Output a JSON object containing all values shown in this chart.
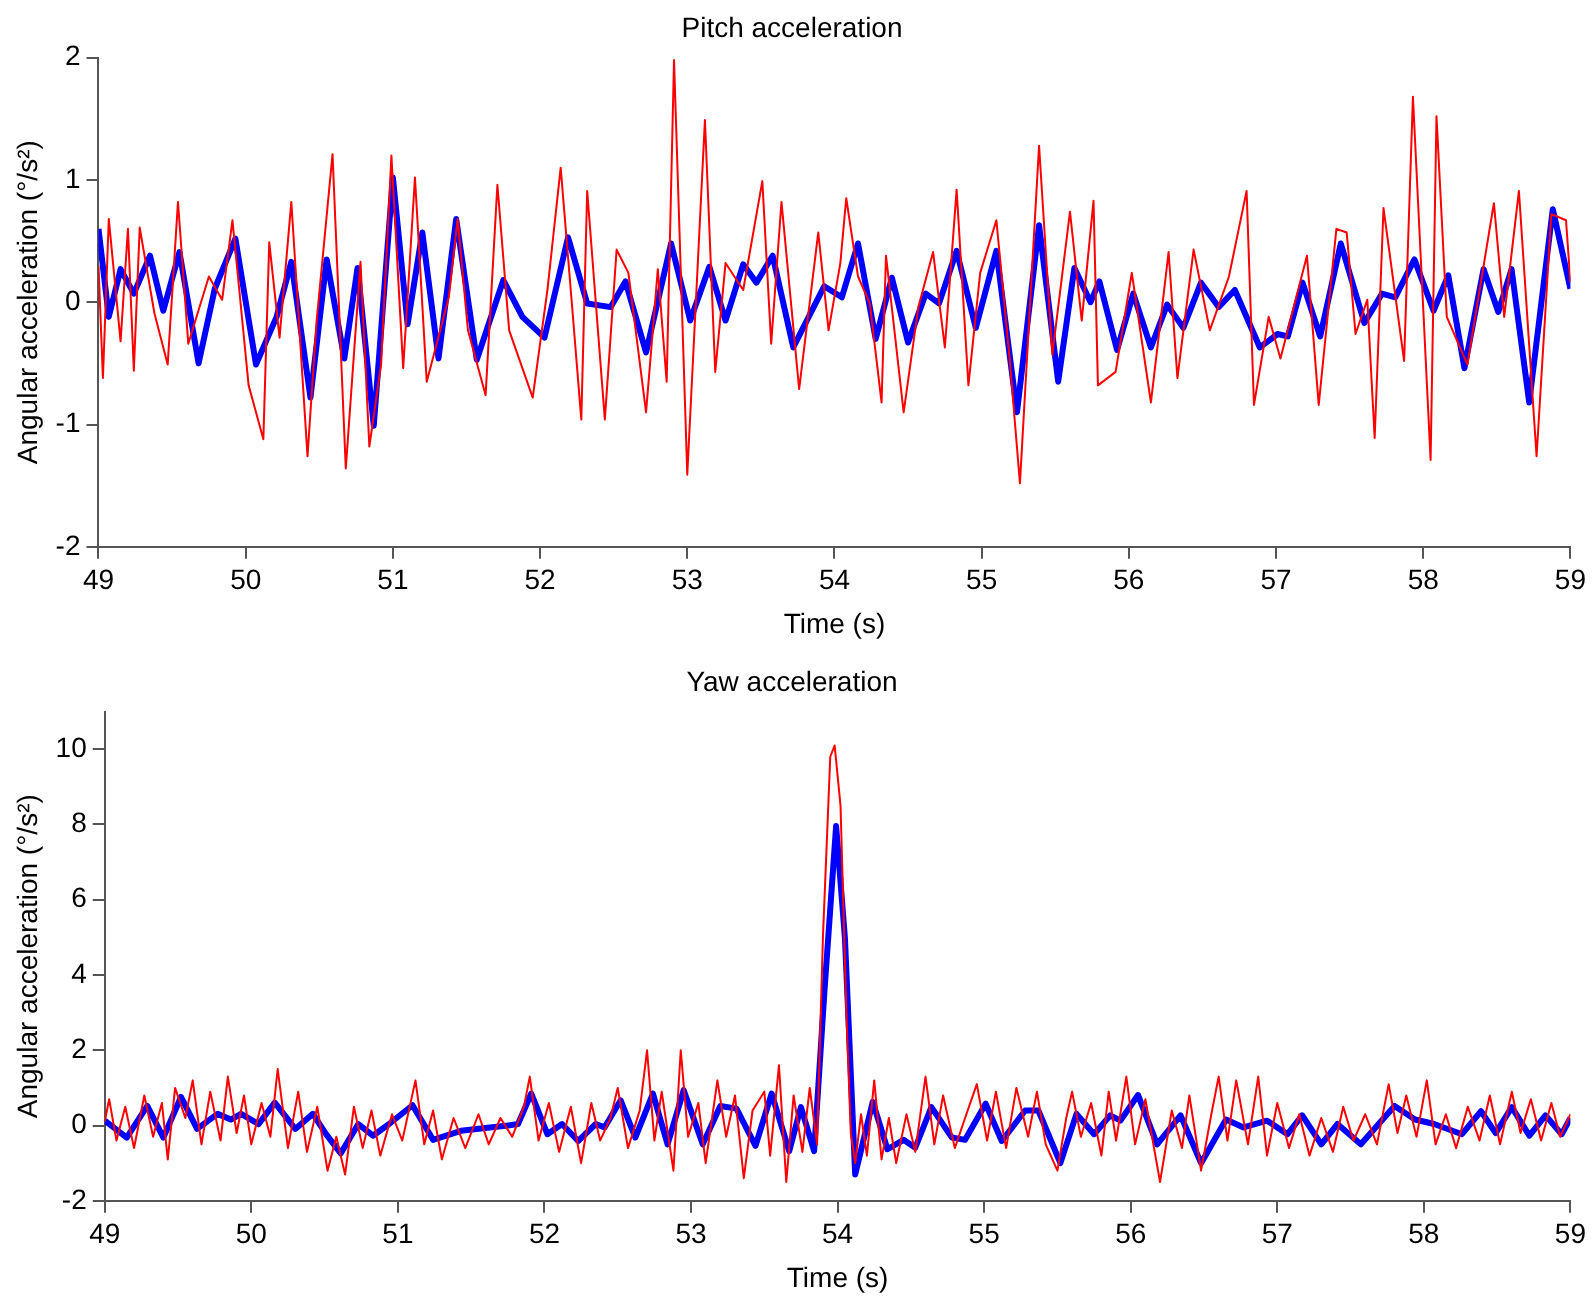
{
  "chart_data": [
    {
      "type": "line",
      "title": "Pitch acceleration",
      "xlabel": "Time (s)",
      "ylabel": "Angular acceleration (°/s²)",
      "xlim": [
        49,
        59
      ],
      "xticks": [
        49,
        50,
        51,
        52,
        53,
        54,
        55,
        56,
        57,
        58,
        59
      ],
      "ylim": [
        -2,
        2
      ],
      "yticks": [
        -2,
        -1,
        0,
        1,
        2
      ],
      "grid": false,
      "legend": false,
      "series": [
        {
          "color": "#ff0000",
          "x": [
            49.0,
            49.03,
            49.07,
            49.15,
            49.2,
            49.24,
            49.28,
            49.38,
            49.47,
            49.54,
            49.61,
            49.75,
            49.84,
            49.91,
            50.02,
            50.12,
            50.16,
            50.23,
            50.31,
            50.42,
            50.48,
            50.59,
            50.68,
            50.78,
            50.84,
            50.92,
            50.99,
            51.07,
            51.15,
            51.23,
            51.38,
            51.44,
            51.51,
            51.63,
            51.71,
            51.79,
            51.95,
            52.05,
            52.14,
            52.22,
            52.28,
            52.32,
            52.44,
            52.52,
            52.6,
            52.72,
            52.8,
            52.86,
            52.91,
            53.0,
            53.12,
            53.19,
            53.26,
            53.38,
            53.51,
            53.57,
            53.64,
            53.76,
            53.89,
            53.96,
            54.04,
            54.08,
            54.16,
            54.24,
            54.32,
            54.35,
            54.47,
            54.57,
            54.67,
            54.75,
            54.83,
            54.91,
            54.99,
            55.1,
            55.19,
            55.26,
            55.39,
            55.48,
            55.6,
            55.68,
            55.76,
            55.79,
            55.91,
            56.02,
            56.15,
            56.27,
            56.33,
            56.44,
            56.55,
            56.68,
            56.8,
            56.85,
            56.95,
            57.03,
            57.21,
            57.29,
            57.41,
            57.48,
            57.54,
            57.62,
            57.67,
            57.73,
            57.87,
            57.93,
            58.05,
            58.09,
            58.16,
            58.3,
            58.48,
            58.55,
            58.65,
            58.77,
            58.87,
            58.97,
            59.0
          ],
          "values": [
            0.3,
            -0.62,
            0.68,
            -0.32,
            0.6,
            -0.56,
            0.61,
            -0.09,
            -0.51,
            0.82,
            -0.34,
            0.21,
            0.02,
            0.67,
            -0.68,
            -1.12,
            0.49,
            -0.29,
            0.82,
            -1.26,
            -0.18,
            1.21,
            -1.36,
            0.33,
            -1.18,
            -0.51,
            1.2,
            -0.54,
            1.02,
            -0.65,
            0.04,
            0.68,
            -0.23,
            -0.76,
            0.96,
            -0.23,
            -0.78,
            0.1,
            1.1,
            -0.07,
            -0.96,
            0.91,
            -0.96,
            0.43,
            0.24,
            -0.9,
            0.27,
            -0.65,
            1.98,
            -1.41,
            1.49,
            -0.57,
            0.32,
            0.1,
            0.99,
            -0.34,
            0.82,
            -0.71,
            0.57,
            -0.23,
            0.32,
            0.85,
            0.21,
            -0.01,
            -0.82,
            0.38,
            -0.9,
            -0.04,
            0.41,
            -0.37,
            0.92,
            -0.68,
            0.24,
            0.67,
            -0.46,
            -1.48,
            1.28,
            -0.43,
            0.74,
            -0.15,
            0.83,
            -0.68,
            -0.57,
            0.24,
            -0.82,
            0.41,
            -0.62,
            0.43,
            -0.23,
            0.21,
            0.91,
            -0.84,
            -0.12,
            -0.46,
            0.38,
            -0.84,
            0.6,
            0.57,
            -0.26,
            0.02,
            -1.11,
            0.77,
            -0.48,
            1.68,
            -1.29,
            1.52,
            -0.12,
            -0.51,
            0.81,
            -0.12,
            0.91,
            -1.26,
            0.72,
            0.67,
            0.16
          ]
        },
        {
          "color": "#0000ff",
          "x": [
            49.0,
            49.07,
            49.15,
            49.24,
            49.35,
            49.44,
            49.55,
            49.68,
            49.79,
            49.93,
            50.07,
            50.21,
            50.31,
            50.44,
            50.55,
            50.67,
            50.76,
            50.87,
            51.0,
            51.1,
            51.2,
            51.31,
            51.43,
            51.57,
            51.75,
            51.88,
            52.03,
            52.19,
            52.32,
            52.48,
            52.58,
            52.72,
            52.89,
            53.02,
            53.15,
            53.26,
            53.38,
            53.47,
            53.58,
            53.72,
            53.93,
            54.05,
            54.16,
            54.28,
            54.39,
            54.5,
            54.62,
            54.71,
            54.83,
            54.96,
            55.1,
            55.24,
            55.39,
            55.52,
            55.63,
            55.74,
            55.8,
            55.92,
            56.03,
            56.15,
            56.26,
            56.37,
            56.49,
            56.61,
            56.72,
            56.89,
            57.01,
            57.08,
            57.18,
            57.3,
            57.44,
            57.6,
            57.72,
            57.81,
            57.94,
            58.07,
            58.17,
            58.28,
            58.41,
            58.51,
            58.6,
            58.72,
            58.88,
            59.0
          ],
          "values": [
            0.6,
            -0.12,
            0.27,
            0.07,
            0.38,
            -0.07,
            0.41,
            -0.5,
            0.11,
            0.52,
            -0.51,
            -0.12,
            0.33,
            -0.78,
            0.35,
            -0.46,
            0.28,
            -1.01,
            1.02,
            -0.18,
            0.57,
            -0.46,
            0.68,
            -0.47,
            0.18,
            -0.12,
            -0.29,
            0.53,
            -0.01,
            -0.04,
            0.17,
            -0.41,
            0.48,
            -0.15,
            0.29,
            -0.15,
            0.31,
            0.16,
            0.38,
            -0.37,
            0.13,
            0.04,
            0.48,
            -0.3,
            0.2,
            -0.33,
            0.07,
            -0.01,
            0.42,
            -0.21,
            0.42,
            -0.9,
            0.63,
            -0.65,
            0.28,
            0,
            0.17,
            -0.39,
            0.07,
            -0.37,
            -0.02,
            -0.21,
            0.16,
            -0.04,
            0.1,
            -0.37,
            -0.26,
            -0.28,
            0.16,
            -0.28,
            0.48,
            -0.17,
            0.07,
            0.04,
            0.35,
            -0.07,
            0.22,
            -0.54,
            0.27,
            -0.08,
            0.27,
            -0.82,
            0.76,
            0.11
          ]
        }
      ]
    },
    {
      "type": "line",
      "title": "Yaw acceleration",
      "xlabel": "Time (s)",
      "ylabel": "Angular acceleration (°/s²)",
      "xlim": [
        49,
        59
      ],
      "xticks": [
        49,
        50,
        51,
        52,
        53,
        54,
        55,
        56,
        57,
        58,
        59
      ],
      "ylim": [
        -2,
        11
      ],
      "yticks": [
        -2,
        0,
        2,
        4,
        6,
        8,
        10
      ],
      "grid": false,
      "legend": false,
      "series": [
        {
          "color": "#ff0000",
          "x": [
            49.0,
            49.03,
            49.08,
            49.14,
            49.2,
            49.27,
            49.33,
            49.39,
            49.43,
            49.48,
            49.55,
            49.6,
            49.66,
            49.72,
            49.79,
            49.84,
            49.9,
            49.95,
            50.0,
            50.07,
            50.13,
            50.18,
            50.25,
            50.32,
            50.38,
            50.45,
            50.52,
            50.58,
            50.64,
            50.7,
            50.76,
            50.82,
            50.88,
            50.96,
            51.03,
            51.12,
            51.18,
            51.24,
            51.3,
            51.38,
            51.46,
            51.55,
            51.62,
            51.7,
            51.78,
            51.86,
            51.9,
            51.96,
            52.03,
            52.1,
            52.18,
            52.25,
            52.32,
            52.38,
            52.45,
            52.5,
            52.57,
            52.65,
            52.7,
            52.75,
            52.8,
            52.88,
            52.93,
            52.98,
            53.05,
            53.1,
            53.18,
            53.24,
            53.3,
            53.36,
            53.42,
            53.5,
            53.54,
            53.6,
            53.65,
            53.7,
            53.76,
            53.81,
            53.86,
            53.9,
            53.95,
            53.98,
            54.02,
            54.06,
            54.09,
            54.12,
            54.16,
            54.2,
            54.25,
            54.3,
            54.35,
            54.4,
            54.47,
            54.53,
            54.6,
            54.66,
            54.72,
            54.8,
            54.87,
            54.95,
            55.02,
            55.08,
            55.15,
            55.22,
            55.3,
            55.36,
            55.42,
            55.5,
            55.56,
            55.6,
            55.66,
            55.73,
            55.8,
            55.85,
            55.9,
            55.97,
            56.03,
            56.1,
            56.2,
            56.28,
            56.35,
            56.4,
            56.48,
            56.55,
            56.6,
            56.66,
            56.72,
            56.8,
            56.87,
            56.93,
            57.0,
            57.08,
            57.15,
            57.22,
            57.3,
            57.38,
            57.45,
            57.52,
            57.6,
            57.68,
            57.76,
            57.82,
            57.88,
            57.95,
            58.02,
            58.08,
            58.15,
            58.22,
            58.3,
            58.38,
            58.45,
            58.52,
            58.6,
            58.66,
            58.73,
            58.8,
            58.87,
            58.93,
            59.0
          ],
          "values": [
            0.1,
            0.7,
            -0.4,
            0.5,
            -0.6,
            0.8,
            -0.3,
            0.6,
            -0.9,
            1.0,
            0.2,
            1.2,
            -0.5,
            0.9,
            -0.4,
            1.3,
            -0.2,
            0.8,
            -0.5,
            0.6,
            -0.3,
            1.5,
            -0.6,
            0.9,
            -0.7,
            0.5,
            -1.2,
            -0.3,
            -1.3,
            0.5,
            -0.6,
            0.4,
            -0.8,
            0.3,
            -0.4,
            1.2,
            -0.5,
            0.4,
            -0.9,
            0.2,
            -0.6,
            0.3,
            -0.5,
            0.2,
            -0.3,
            0.5,
            1.3,
            -0.4,
            0.6,
            -0.7,
            0.5,
            -1.0,
            0.6,
            -0.4,
            0.2,
            1.0,
            -0.6,
            0.4,
            2.0,
            -0.4,
            0.9,
            -1.2,
            2.0,
            -0.3,
            0.6,
            -1.0,
            1.2,
            -0.3,
            0.8,
            -1.4,
            0.4,
            0.9,
            -0.8,
            1.6,
            -1.5,
            0.8,
            -0.7,
            1.0,
            -0.5,
            5.0,
            9.8,
            10.1,
            8.5,
            3.0,
            -0.2,
            -1.0,
            0.3,
            -0.8,
            1.2,
            -0.9,
            0.2,
            -1.0,
            0.3,
            -0.7,
            1.3,
            -0.5,
            0.8,
            -0.6,
            0.2,
            1.1,
            -0.4,
            0.9,
            -0.6,
            1.0,
            -0.3,
            0.9,
            -0.5,
            -1.2,
            0.2,
            0.9,
            -0.3,
            0.6,
            -0.8,
            0.9,
            -0.4,
            1.3,
            -0.5,
            0.7,
            -1.5,
            0.4,
            -0.6,
            0.8,
            -1.2,
            0.3,
            1.3,
            -0.4,
            1.2,
            -0.5,
            1.3,
            -0.8,
            0.6,
            -0.6,
            0.3,
            -0.8,
            0.2,
            -0.7,
            0.5,
            -0.4,
            0.3,
            -0.5,
            1.1,
            -0.2,
            0.8,
            -0.3,
            1.2,
            -0.5,
            0.3,
            -0.6,
            0.5,
            -0.4,
            0.8,
            -0.5,
            0.9,
            -0.2,
            0.7,
            -0.4,
            0.6,
            -0.3,
            0.3
          ]
        },
        {
          "color": "#0000ff",
          "x": [
            49.0,
            49.15,
            49.29,
            49.4,
            49.52,
            49.63,
            49.77,
            49.86,
            49.93,
            50.05,
            50.16,
            50.3,
            50.42,
            50.51,
            50.61,
            50.73,
            50.83,
            50.94,
            51.1,
            51.24,
            51.43,
            51.75,
            51.82,
            51.91,
            52.02,
            52.12,
            52.23,
            52.35,
            52.41,
            52.52,
            52.62,
            52.74,
            52.84,
            52.95,
            53.08,
            53.2,
            53.31,
            53.44,
            53.55,
            53.67,
            53.75,
            53.84,
            53.91,
            53.99,
            54.05,
            54.12,
            54.24,
            54.34,
            54.45,
            54.53,
            54.64,
            54.78,
            54.87,
            55.01,
            55.12,
            55.28,
            55.37,
            55.52,
            55.63,
            55.75,
            55.86,
            55.93,
            56.05,
            56.18,
            56.34,
            56.48,
            56.65,
            56.77,
            56.93,
            57.07,
            57.17,
            57.3,
            57.41,
            57.57,
            57.8,
            57.94,
            58.07,
            58.26,
            58.39,
            58.49,
            58.6,
            58.72,
            58.83,
            58.94,
            59.0
          ],
          "values": [
            0.13,
            -0.32,
            0.52,
            -0.32,
            0.76,
            -0.09,
            0.31,
            0.16,
            0.31,
            0.04,
            0.61,
            -0.09,
            0.31,
            -0.23,
            -0.74,
            0.04,
            -0.27,
            0.04,
            0.54,
            -0.38,
            -0.14,
            0.0,
            0.04,
            0.85,
            -0.23,
            0.04,
            -0.41,
            0.04,
            -0.05,
            0.67,
            -0.32,
            0.85,
            -0.5,
            0.94,
            -0.5,
            0.52,
            0.45,
            -0.54,
            0.85,
            -0.68,
            0.49,
            -0.68,
            3.55,
            7.96,
            4.99,
            -1.3,
            0.63,
            -0.63,
            -0.38,
            -0.59,
            0.49,
            -0.32,
            -0.38,
            0.58,
            -0.41,
            0.4,
            0.4,
            -1.0,
            0.31,
            -0.23,
            0.27,
            0.13,
            0.81,
            -0.5,
            0.27,
            -1.0,
            0.16,
            -0.05,
            0.13,
            -0.23,
            0.27,
            -0.5,
            0.04,
            -0.5,
            0.52,
            0.16,
            0.04,
            -0.23,
            0.38,
            -0.2,
            0.49,
            -0.27,
            0.27,
            -0.23,
            0.2
          ]
        }
      ]
    }
  ]
}
